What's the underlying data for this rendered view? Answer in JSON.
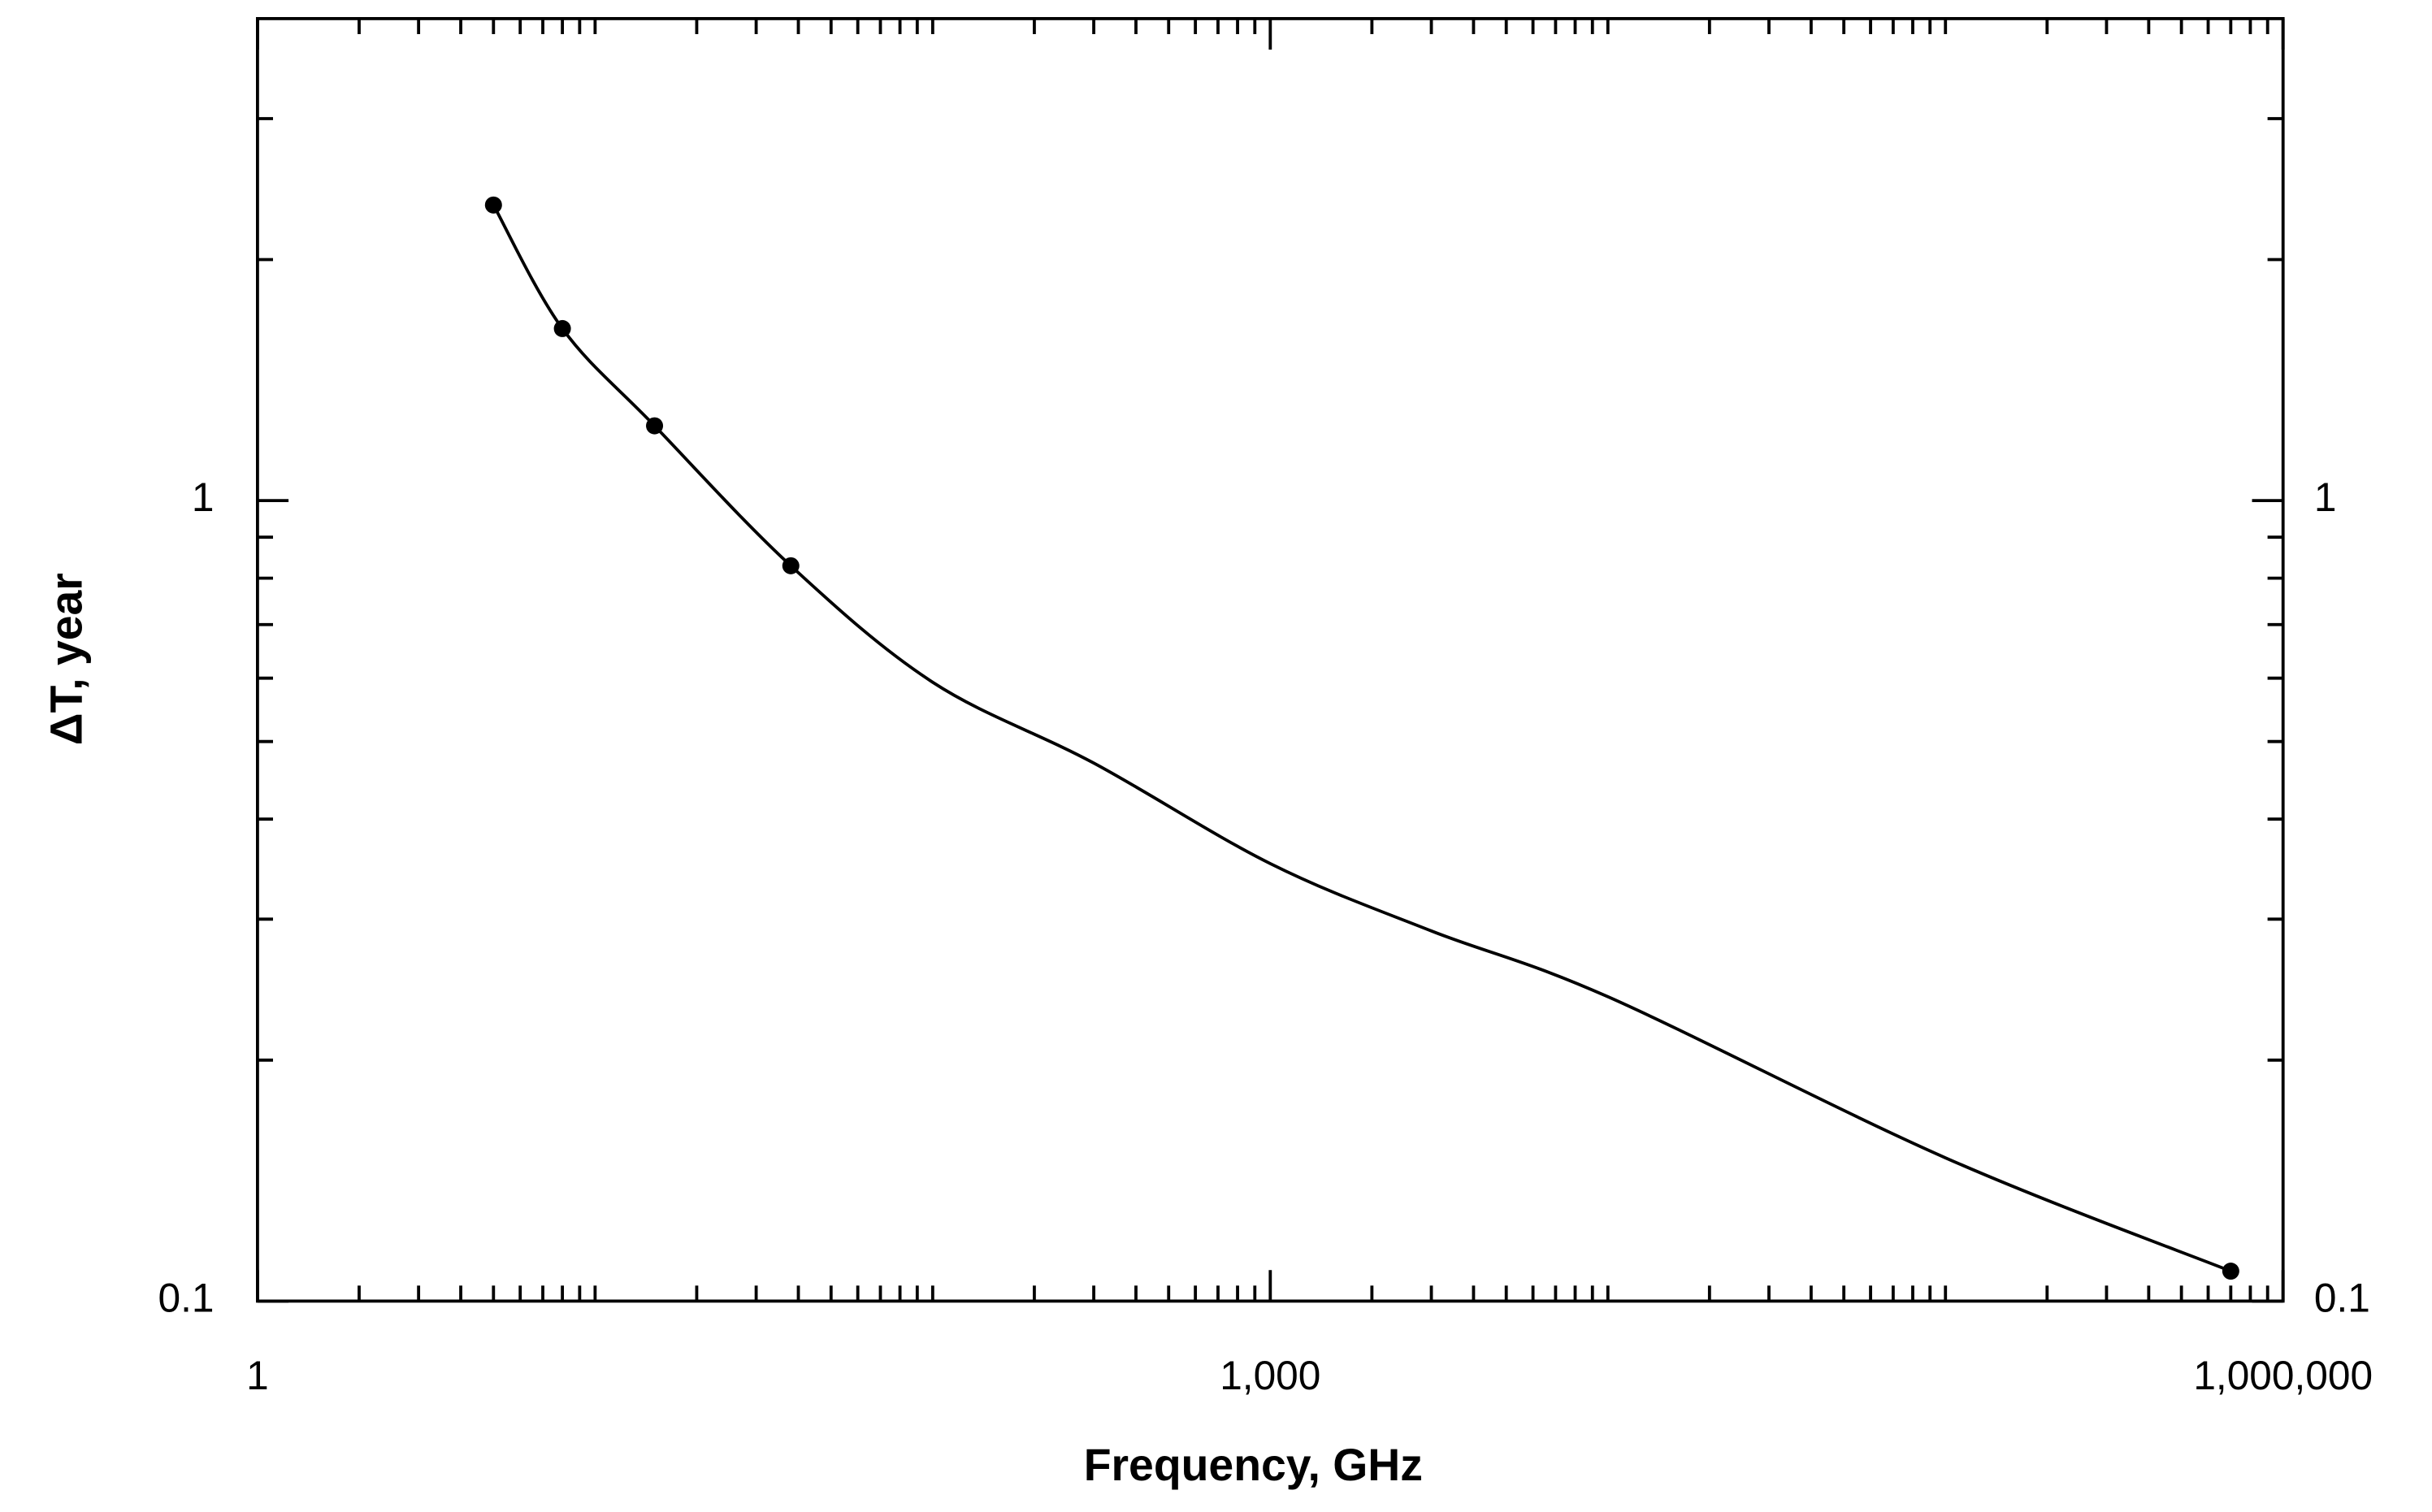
{
  "chart_data": {
    "type": "line",
    "xlabel": "Frequency, GHz",
    "ylabel": "ΔT, year",
    "xscale": "log",
    "yscale": "log",
    "xlim": [
      1,
      1000000
    ],
    "ylim": [
      0.1,
      4
    ],
    "xticks": [
      1,
      {
        "value": 1000,
        "label": "1,000"
      },
      {
        "value": 1000000,
        "label": "1,000,000"
      }
    ],
    "yticks": [
      0.1,
      1
    ],
    "xminorticks": [
      2,
      3,
      4,
      5,
      6,
      7,
      8,
      9,
      10,
      20,
      30,
      40,
      50,
      60,
      70,
      80,
      90,
      100,
      200,
      300,
      400,
      500,
      600,
      700,
      800,
      900,
      2000,
      3000,
      4000,
      5000,
      6000,
      7000,
      8000,
      9000,
      10000,
      20000,
      30000,
      40000,
      50000,
      60000,
      70000,
      80000,
      90000,
      100000,
      200000,
      300000,
      400000,
      500000,
      600000,
      700000,
      800000,
      900000
    ],
    "yminorticks": [
      0.2,
      0.3,
      0.4,
      0.5,
      0.6,
      0.7,
      0.8,
      0.9,
      2,
      3
    ],
    "series": [
      {
        "color": "#000000",
        "marker": false,
        "x": [
          5,
          8,
          15,
          38,
          100,
          300,
          1000,
          3000,
          10000,
          100000,
          700000
        ],
        "values": [
          2.34,
          1.64,
          1.24,
          0.829,
          0.593,
          0.47,
          0.352,
          0.29,
          0.24,
          0.151,
          0.109
        ]
      },
      {
        "color": "#000000",
        "marker": true,
        "x": [
          5,
          8,
          15,
          38,
          700000
        ],
        "values": [
          2.34,
          1.64,
          1.24,
          0.829,
          0.109
        ]
      }
    ]
  }
}
